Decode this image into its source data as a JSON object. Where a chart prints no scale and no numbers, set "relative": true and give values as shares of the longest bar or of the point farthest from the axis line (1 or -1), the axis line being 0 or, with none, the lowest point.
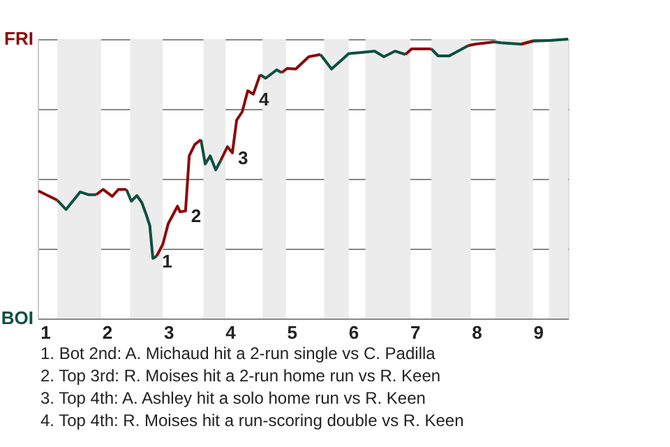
{
  "chart_data": {
    "type": "line",
    "relative": true,
    "x": [
      0.89,
      1.2,
      1.34,
      1.57,
      1.71,
      1.83,
      1.94,
      2.09,
      2.19,
      2.32,
      2.4,
      2.49,
      2.57,
      2.64,
      2.7,
      2.75,
      2.81,
      2.91,
      3.0,
      3.15,
      3.19,
      3.28,
      3.34,
      3.43,
      3.53,
      3.6,
      3.68,
      3.77,
      3.85,
      3.96,
      4.04,
      4.11,
      4.2,
      4.29,
      4.38,
      4.49,
      4.58,
      4.76,
      4.84,
      4.93,
      5.07,
      5.28,
      5.47,
      5.65,
      5.93,
      6.35,
      6.5,
      6.68,
      6.85,
      6.95,
      7.27,
      7.38,
      7.56,
      7.87,
      7.98,
      8.29,
      8.4,
      8.73,
      8.92,
      9.18,
      9.49
    ],
    "series": [
      {
        "color": "#0d5040",
        "values": [
          null,
          0.423,
          0.39,
          0.453,
          0.443,
          0.443,
          null,
          null,
          null,
          0.462,
          0.42,
          0.44,
          0.415,
          0.373,
          0.332,
          0.215,
          0.223,
          null,
          null,
          null,
          null,
          null,
          null,
          null,
          0.64,
          0.553,
          0.582,
          0.532,
          0.565,
          null,
          null,
          null,
          null,
          null,
          null,
          0.873,
          0.86,
          0.89,
          0.88,
          null,
          null,
          null,
          0.945,
          0.893,
          0.948,
          0.957,
          0.937,
          0.957,
          0.945,
          null,
          0.965,
          0.94,
          0.94,
          0.977,
          null,
          0.99,
          0.987,
          0.982,
          0.993,
          0.995,
          1
        ]
      },
      {
        "color": "#8c0a0a",
        "values": [
          0.457,
          0.423,
          null,
          null,
          null,
          0.443,
          0.462,
          0.437,
          0.462,
          0.462,
          null,
          null,
          null,
          null,
          null,
          null,
          0.223,
          0.265,
          0.34,
          0.402,
          0.382,
          0.385,
          0.582,
          0.623,
          0.64,
          null,
          null,
          null,
          0.565,
          0.615,
          0.593,
          0.71,
          0.74,
          0.815,
          0.803,
          0.873,
          null,
          null,
          0.88,
          0.895,
          0.893,
          0.937,
          0.945,
          null,
          null,
          null,
          null,
          null,
          0.945,
          0.965,
          0.965,
          null,
          null,
          0.977,
          0.982,
          0.99,
          null,
          0.982,
          0.993,
          null,
          null
        ]
      }
    ],
    "xlim": [
      0.88,
      9.49
    ],
    "xticks": [
      1,
      2,
      3,
      4,
      5,
      6,
      7,
      8,
      9
    ],
    "grid": "y",
    "bands": [
      {
        "axis": "x",
        "from": 1.2,
        "to": 1.91,
        "color": "#ececec"
      },
      {
        "axis": "x",
        "from": 2.38,
        "to": 2.91,
        "color": "#ececec"
      },
      {
        "axis": "x",
        "from": 3.57,
        "to": 3.93,
        "color": "#ececec"
      },
      {
        "axis": "x",
        "from": 4.53,
        "to": 4.91,
        "color": "#ececec"
      },
      {
        "axis": "x",
        "from": 5.53,
        "to": 5.93,
        "color": "#ececec"
      },
      {
        "axis": "x",
        "from": 6.2,
        "to": 6.93,
        "color": "#ececec"
      },
      {
        "axis": "x",
        "from": 7.27,
        "to": 7.91,
        "color": "#ececec"
      },
      {
        "axis": "x",
        "from": 8.31,
        "to": 8.92,
        "color": "#ececec"
      },
      {
        "axis": "x",
        "from": 9.18,
        "to": 9.49,
        "color": "#ececec"
      }
    ],
    "annotations": [
      "FRI",
      "BOI",
      {
        "text": "1",
        "x": 2.81,
        "y": 0.223
      },
      {
        "text": "2",
        "x": 3.28,
        "y": 0.385
      },
      {
        "text": "3",
        "x": 4.04,
        "y": 0.593
      },
      {
        "text": "4",
        "x": 4.38,
        "y": 0.803
      },
      "1. Bot 2nd: A. Michaud hit a 2-run single vs C. Padilla",
      "2. Top 3rd: R. Moises hit a 2-run home run vs R. Keen",
      "3. Top 4th: A. Ashley hit a solo home run vs R. Keen",
      "4. Top 4th: R. Moises hit a run-scoring double vs R. Keen"
    ]
  }
}
